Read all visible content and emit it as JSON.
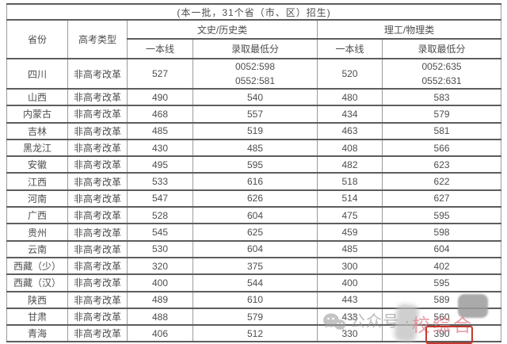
{
  "page_title": "(本一批，31个省（市、区）招生)",
  "chart_data": {
    "type": "table",
    "title": "(本一批，31个省（市、区）招生)",
    "headers": {
      "province": "省份",
      "exam_type": "高考类型",
      "wen_group": "文史/历史类",
      "li_group": "理工/物理类",
      "line": "一本线",
      "min_score": "录取最低分"
    },
    "rows": [
      {
        "province": "四川",
        "exam_type": "非高考改革",
        "wen_line": "527",
        "wen_min": [
          "0052:598",
          "0552:581"
        ],
        "li_line": "520",
        "li_min": [
          "0052:635",
          "0552:631"
        ]
      },
      {
        "province": "山西",
        "exam_type": "非高考改革",
        "wen_line": "490",
        "wen_min": "540",
        "li_line": "480",
        "li_min": "583"
      },
      {
        "province": "内蒙古",
        "exam_type": "非高考改革",
        "wen_line": "468",
        "wen_min": "557",
        "li_line": "434",
        "li_min": "579"
      },
      {
        "province": "吉林",
        "exam_type": "非高考改革",
        "wen_line": "485",
        "wen_min": "519",
        "li_line": "463",
        "li_min": "581"
      },
      {
        "province": "黑龙江",
        "exam_type": "非高考改革",
        "wen_line": "430",
        "wen_min": "485",
        "li_line": "408",
        "li_min": "566"
      },
      {
        "province": "安徽",
        "exam_type": "非高考改革",
        "wen_line": "495",
        "wen_min": "595",
        "li_line": "482",
        "li_min": "623"
      },
      {
        "province": "江西",
        "exam_type": "非高考改革",
        "wen_line": "533",
        "wen_min": "616",
        "li_line": "518",
        "li_min": "622"
      },
      {
        "province": "河南",
        "exam_type": "非高考改革",
        "wen_line": "547",
        "wen_min": "626",
        "li_line": "514",
        "li_min": "627"
      },
      {
        "province": "广西",
        "exam_type": "非高考改革",
        "wen_line": "528",
        "wen_min": "604",
        "li_line": "475",
        "li_min": "595"
      },
      {
        "province": "贵州",
        "exam_type": "非高考改革",
        "wen_line": "545",
        "wen_min": "625",
        "li_line": "459",
        "li_min": "598"
      },
      {
        "province": "云南",
        "exam_type": "非高考改革",
        "wen_line": "530",
        "wen_min": "604",
        "li_line": "485",
        "li_min": "604"
      },
      {
        "province": "西藏（少）",
        "exam_type": "非高考改革",
        "wen_line": "320",
        "wen_min": "375",
        "li_line": "300",
        "li_min": "402"
      },
      {
        "province": "西藏（汉）",
        "exam_type": "非高考改革",
        "wen_line": "400",
        "wen_min": "544",
        "li_line": "400",
        "li_min": "595"
      },
      {
        "province": "陕西",
        "exam_type": "非高考改革",
        "wen_line": "489",
        "wen_min": "610",
        "li_line": "443",
        "li_min": "589"
      },
      {
        "province": "甘肃",
        "exam_type": "非高考改革",
        "wen_line": "488",
        "wen_min": "579",
        "li_line": "433",
        "li_min": "560"
      },
      {
        "province": "青海",
        "exam_type": "非高考改革",
        "wen_line": "406",
        "wen_min": "512",
        "li_line": "330",
        "li_min": "390"
      }
    ]
  },
  "annotations": {
    "highlight": {
      "value": "390",
      "color": "#c5392f"
    }
  },
  "watermark": {
    "icon": "wechat-icon",
    "prefix": "公众号 ·",
    "suffix": "校综合",
    "gray_color": "#919191",
    "pink_color": "#e0848e"
  }
}
